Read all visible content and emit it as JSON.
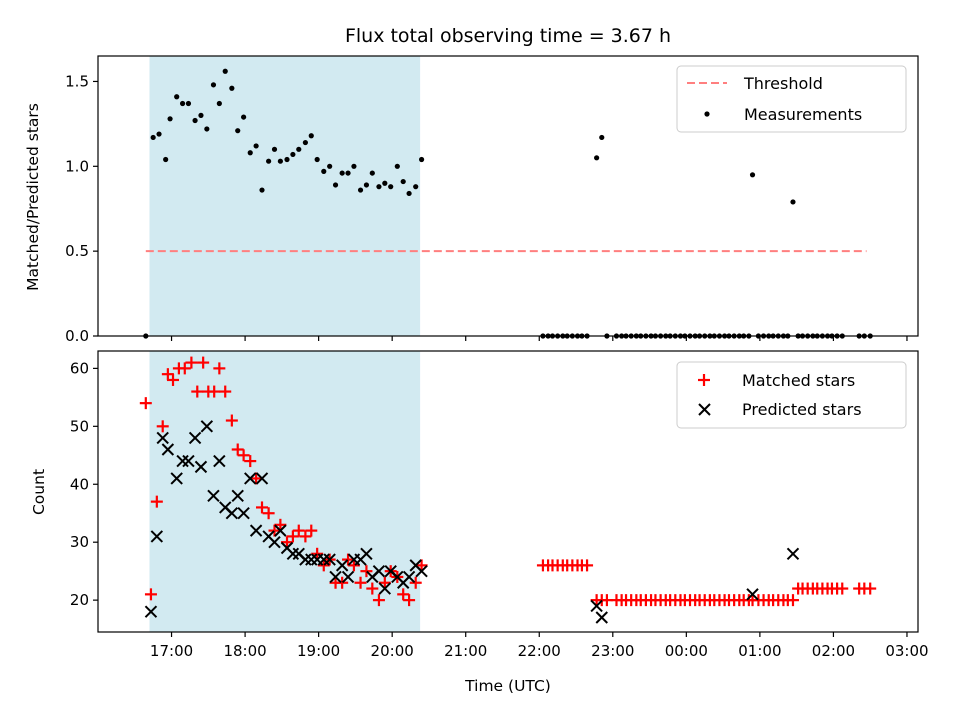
{
  "chart_data": [
    {
      "type": "scatter",
      "title": "Flux total observing time = 3.67 h",
      "xlabel": "",
      "ylabel": "Matched/Predicted stars",
      "ylim": [
        0,
        1.65
      ],
      "yticks": [
        "0.0",
        "0.5",
        "1.0",
        "1.5"
      ],
      "ytick_values": [
        0,
        0.5,
        1.0,
        1.5
      ],
      "grid": false,
      "legend_position": "top-right",
      "colors": {
        "highlight": "#add8e6",
        "threshold": "#ff7f7f",
        "measurements": "#000000"
      },
      "highlight_span": {
        "start_h": 16.7,
        "end_h": 20.38
      },
      "threshold": {
        "name": "Threshold",
        "value": 0.5,
        "x_range_h": [
          16.65,
          26.45
        ]
      },
      "measurements": {
        "name": "Measurements",
        "x_h": [
          16.65,
          16.75,
          16.83,
          16.92,
          16.98,
          17.07,
          17.15,
          17.23,
          17.32,
          17.4,
          17.48,
          17.57,
          17.65,
          17.73,
          17.82,
          17.9,
          17.98,
          18.07,
          18.15,
          18.23,
          18.32,
          18.4,
          18.48,
          18.57,
          18.65,
          18.73,
          18.82,
          18.9,
          18.98,
          19.07,
          19.15,
          19.23,
          19.32,
          19.4,
          19.48,
          19.57,
          19.65,
          19.73,
          19.82,
          19.9,
          19.98,
          20.07,
          20.15,
          20.23,
          20.32,
          20.4,
          22.05,
          22.12,
          22.18,
          22.25,
          22.32,
          22.38,
          22.45,
          22.52,
          22.58,
          22.65,
          22.78,
          22.85,
          22.92,
          23.05,
          23.12,
          23.18,
          23.25,
          23.32,
          23.38,
          23.45,
          23.52,
          23.58,
          23.65,
          23.72,
          23.78,
          23.85,
          23.92,
          23.98,
          24.05,
          24.12,
          24.18,
          24.25,
          24.32,
          24.38,
          24.45,
          24.52,
          24.58,
          24.65,
          24.72,
          24.78,
          24.85,
          24.9,
          24.98,
          25.05,
          25.12,
          25.18,
          25.25,
          25.32,
          25.38,
          25.45,
          25.52,
          25.58,
          25.65,
          25.72,
          25.78,
          25.85,
          25.92,
          25.98,
          26.05,
          26.12,
          26.35,
          26.42,
          26.5
        ],
        "y": [
          0.0,
          1.17,
          1.19,
          1.04,
          1.28,
          1.41,
          1.37,
          1.37,
          1.27,
          1.3,
          1.22,
          1.48,
          1.37,
          1.56,
          1.46,
          1.21,
          1.29,
          1.08,
          1.12,
          0.86,
          1.03,
          1.1,
          1.03,
          1.04,
          1.07,
          1.1,
          1.14,
          1.18,
          1.04,
          0.97,
          1.0,
          0.89,
          0.96,
          0.96,
          1.0,
          0.86,
          0.89,
          0.96,
          0.88,
          0.9,
          0.88,
          1.0,
          0.91,
          0.84,
          0.88,
          1.04,
          0.0,
          0.0,
          0.0,
          0.0,
          0.0,
          0.0,
          0.0,
          0.0,
          0.0,
          0.0,
          1.05,
          1.17,
          0.0,
          0.0,
          0.0,
          0.0,
          0.0,
          0.0,
          0.0,
          0.0,
          0.0,
          0.0,
          0.0,
          0.0,
          0.0,
          0.0,
          0.0,
          0.0,
          0.0,
          0.0,
          0.0,
          0.0,
          0.0,
          0.0,
          0.0,
          0.0,
          0.0,
          0.0,
          0.0,
          0.0,
          0.0,
          0.95,
          0.0,
          0.0,
          0.0,
          0.0,
          0.0,
          0.0,
          0.0,
          0.79,
          0.0,
          0.0,
          0.0,
          0.0,
          0.0,
          0.0,
          0.0,
          0.0,
          0.0,
          0.0,
          0.0,
          0.0,
          0.0
        ]
      }
    },
    {
      "type": "scatter",
      "title": "",
      "xlabel": "Time (UTC)",
      "ylabel": "Count",
      "ylim": [
        14.5,
        63
      ],
      "yticks": [
        "20",
        "30",
        "40",
        "50",
        "60"
      ],
      "ytick_values": [
        20,
        30,
        40,
        50,
        60
      ],
      "xlim_h": [
        16.0,
        27.15
      ],
      "xticks": [
        "17:00",
        "18:00",
        "19:00",
        "20:00",
        "21:00",
        "22:00",
        "23:00",
        "00:00",
        "01:00",
        "02:00",
        "03:00"
      ],
      "xtick_values_h": [
        17,
        18,
        19,
        20,
        21,
        22,
        23,
        24,
        25,
        26,
        27
      ],
      "grid": false,
      "legend_position": "top-right",
      "colors": {
        "highlight": "#add8e6",
        "matched": "#ff0000",
        "predicted": "#000000"
      },
      "highlight_span": {
        "start_h": 16.7,
        "end_h": 20.38
      },
      "series": [
        {
          "name": "Matched stars",
          "marker": "plus",
          "x_h": [
            16.65,
            16.72,
            16.8,
            16.88,
            16.95,
            17.02,
            17.1,
            17.18,
            17.27,
            17.35,
            17.43,
            17.5,
            17.58,
            17.65,
            17.73,
            17.82,
            17.9,
            17.98,
            18.07,
            18.15,
            18.23,
            18.32,
            18.4,
            18.48,
            18.57,
            18.65,
            18.73,
            18.82,
            18.9,
            18.98,
            19.07,
            19.15,
            19.23,
            19.32,
            19.4,
            19.48,
            19.57,
            19.65,
            19.73,
            19.82,
            19.9,
            19.98,
            20.07,
            20.15,
            20.23,
            20.32,
            20.4,
            22.05,
            22.12,
            22.18,
            22.25,
            22.32,
            22.38,
            22.45,
            22.52,
            22.58,
            22.65,
            22.78,
            22.85,
            22.92,
            23.05,
            23.12,
            23.18,
            23.25,
            23.32,
            23.38,
            23.45,
            23.52,
            23.58,
            23.65,
            23.72,
            23.78,
            23.85,
            23.92,
            23.98,
            24.05,
            24.12,
            24.18,
            24.25,
            24.32,
            24.38,
            24.45,
            24.52,
            24.58,
            24.65,
            24.72,
            24.78,
            24.85,
            24.9,
            24.98,
            25.05,
            25.12,
            25.18,
            25.25,
            25.32,
            25.38,
            25.45,
            25.52,
            25.58,
            25.65,
            25.72,
            25.78,
            25.85,
            25.92,
            25.98,
            26.05,
            26.12,
            26.35,
            26.42,
            26.5
          ],
          "y": [
            54,
            21,
            37,
            50,
            59,
            58,
            60,
            60,
            61,
            56,
            61,
            56,
            56,
            60,
            56,
            51,
            46,
            45,
            44,
            41,
            36,
            35,
            32,
            33,
            30,
            31,
            32,
            31,
            32,
            28,
            26,
            27,
            23,
            23,
            27,
            26,
            23,
            25,
            22,
            20,
            23,
            25,
            24,
            21,
            20,
            23,
            26,
            26,
            26,
            26,
            26,
            26,
            26,
            26,
            26,
            26,
            26,
            20,
            20,
            20,
            20,
            20,
            20,
            20,
            20,
            20,
            20,
            20,
            20,
            20,
            20,
            20,
            20,
            20,
            20,
            20,
            20,
            20,
            20,
            20,
            20,
            20,
            20,
            20,
            20,
            20,
            20,
            20,
            20,
            20,
            20,
            20,
            20,
            20,
            20,
            20,
            20,
            22,
            22,
            22,
            22,
            22,
            22,
            22,
            22,
            22,
            22,
            22,
            22,
            22
          ]
        },
        {
          "name": "Predicted stars",
          "marker": "x",
          "x_h": [
            16.72,
            16.8,
            16.88,
            16.95,
            17.07,
            17.15,
            17.23,
            17.32,
            17.4,
            17.48,
            17.57,
            17.65,
            17.73,
            17.82,
            17.9,
            17.98,
            18.07,
            18.15,
            18.23,
            18.32,
            18.4,
            18.48,
            18.57,
            18.65,
            18.73,
            18.82,
            18.9,
            18.98,
            19.07,
            19.15,
            19.23,
            19.32,
            19.4,
            19.48,
            19.57,
            19.65,
            19.73,
            19.82,
            19.9,
            19.98,
            20.07,
            20.15,
            20.23,
            20.32,
            20.4,
            22.78,
            22.85,
            24.9,
            25.45
          ],
          "y": [
            18,
            31,
            48,
            46,
            41,
            44,
            44,
            48,
            43,
            50,
            38,
            44,
            36,
            35,
            38,
            35,
            41,
            32,
            41,
            31,
            30,
            32,
            29,
            28,
            28,
            27,
            27,
            27,
            27,
            27,
            24,
            26,
            24,
            27,
            27,
            28,
            24,
            25,
            22,
            25,
            24,
            23,
            24,
            26,
            25,
            19,
            17,
            21,
            28
          ]
        }
      ]
    }
  ]
}
